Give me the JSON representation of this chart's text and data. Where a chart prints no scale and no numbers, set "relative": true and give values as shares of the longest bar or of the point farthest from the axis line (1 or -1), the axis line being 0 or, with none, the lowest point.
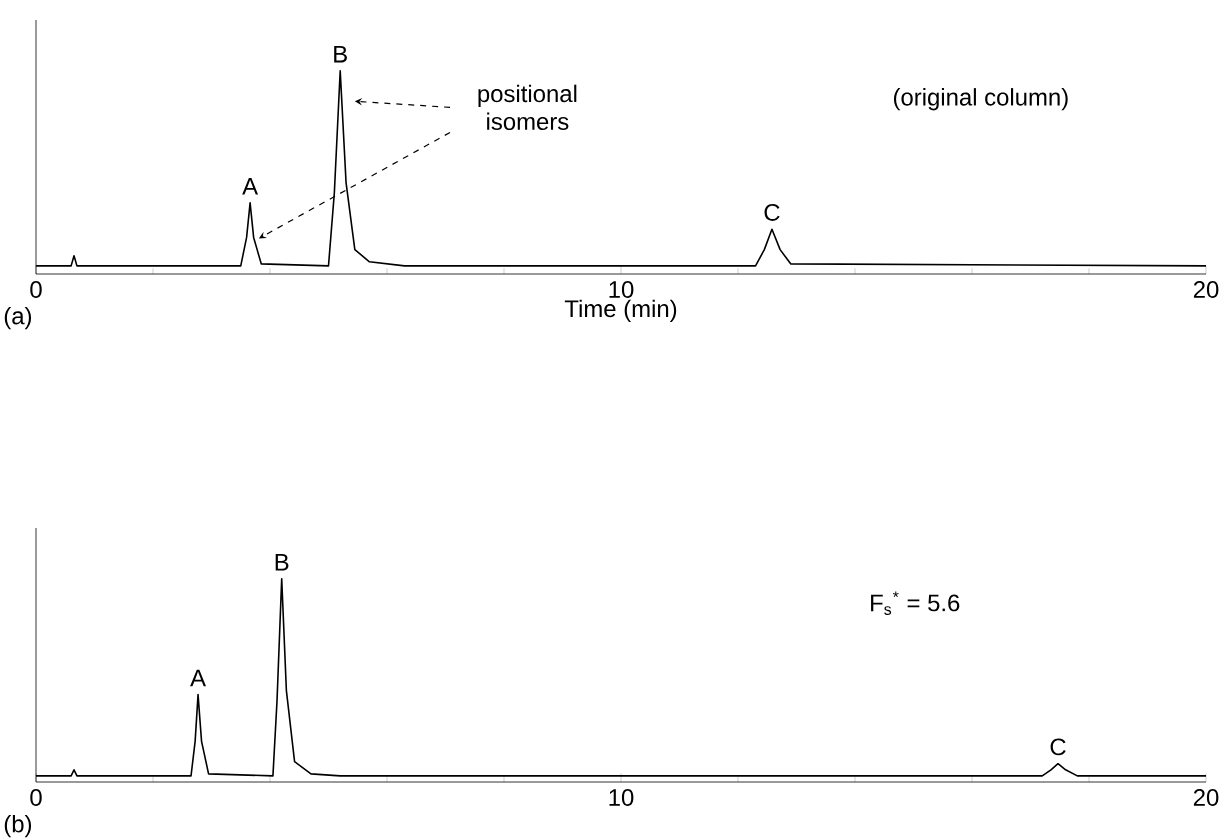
{
  "chart_data": [
    {
      "type": "line",
      "xlabel": "Time (min)",
      "xlim": [
        0,
        20
      ],
      "xticks": [
        0,
        10,
        20
      ],
      "relative": true,
      "series": [
        {
          "color": "#000000",
          "x": [
            0,
            0.6,
            0.65,
            0.7,
            3.5,
            3.6,
            3.66,
            3.72,
            3.85,
            5.0,
            5.1,
            5.2,
            5.3,
            5.45,
            5.7,
            6.3,
            12.3,
            12.45,
            12.58,
            12.72,
            12.9,
            20
          ],
          "values": [
            0.04,
            0.04,
            0.09,
            0.04,
            0.04,
            0.18,
            0.35,
            0.18,
            0.05,
            0.04,
            0.4,
            1.0,
            0.45,
            0.12,
            0.06,
            0.04,
            0.04,
            0.12,
            0.22,
            0.12,
            0.05,
            0.04
          ]
        }
      ],
      "annotations": [
        {
          "text": "A",
          "x": 3.66,
          "y": 0.35
        },
        {
          "text": "B",
          "x": 5.2,
          "y": 1.0
        },
        {
          "text": "C",
          "x": 12.58,
          "y": 0.22
        },
        "positional isomers",
        "(original column)",
        "(a)"
      ]
    },
    {
      "type": "line",
      "xlim": [
        0,
        20
      ],
      "xticks": [
        0,
        10,
        20
      ],
      "relative": true,
      "series": [
        {
          "color": "#000000",
          "x": [
            0,
            0.6,
            0.65,
            0.7,
            2.65,
            2.72,
            2.77,
            2.83,
            2.95,
            4.05,
            4.12,
            4.2,
            4.28,
            4.42,
            4.7,
            5.2,
            17.2,
            17.35,
            17.47,
            17.6,
            17.8,
            20
          ],
          "values": [
            0.03,
            0.03,
            0.06,
            0.03,
            0.03,
            0.2,
            0.43,
            0.2,
            0.04,
            0.03,
            0.4,
            1.0,
            0.45,
            0.1,
            0.04,
            0.03,
            0.03,
            0.06,
            0.09,
            0.06,
            0.03,
            0.03
          ]
        }
      ],
      "annotations": [
        {
          "text": "A",
          "x": 2.77,
          "y": 0.43
        },
        {
          "text": "B",
          "x": 4.2,
          "y": 1.0
        },
        {
          "text": "C",
          "x": 17.47,
          "y": 0.09
        },
        "F$_{s}$$^{*}$ = 5.6",
        "(b)"
      ]
    }
  ]
}
